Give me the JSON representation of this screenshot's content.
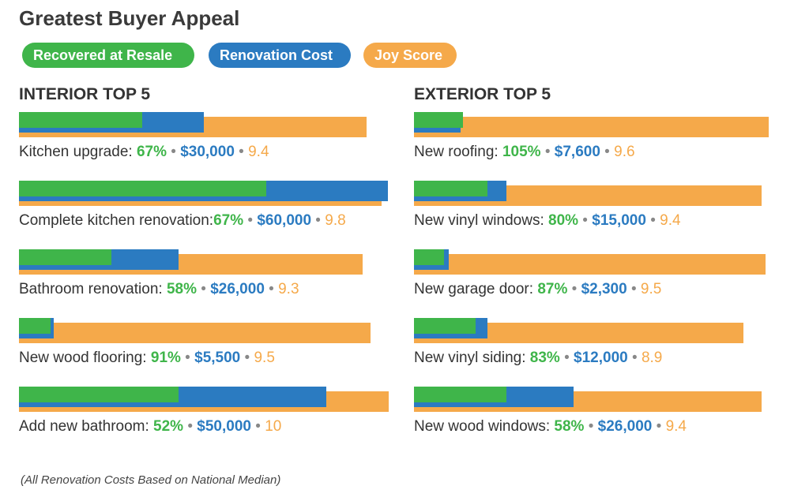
{
  "title": "Greatest Buyer Appeal",
  "legend": [
    {
      "label": "Recovered at Resale",
      "color": "#3fb54a"
    },
    {
      "label": "Renovation Cost",
      "color": "#2b7bc1"
    },
    {
      "label": "Joy Score",
      "color": "#f5a94a"
    }
  ],
  "footnote": "(All Renovation Costs Based on National Median)",
  "chart_data": [
    {
      "type": "bar",
      "title": "INTERIOR TOP 5",
      "series_names": [
        "Recovered at Resale",
        "Renovation Cost",
        "Joy Score"
      ],
      "items": [
        {
          "label": "Kitchen upgrade: ",
          "resale_pct": 67,
          "resale_text": "67%",
          "cost": 30000,
          "cost_text": "$30,000",
          "joy": 9.4,
          "joy_text": "9.4"
        },
        {
          "label": "Complete kitchen renovation:",
          "resale_pct": 67,
          "resale_text": "67%",
          "cost": 60000,
          "cost_text": "$60,000",
          "joy": 9.8,
          "joy_text": "9.8"
        },
        {
          "label": "Bathroom renovation: ",
          "resale_pct": 58,
          "resale_text": "58%",
          "cost": 26000,
          "cost_text": "$26,000",
          "joy": 9.3,
          "joy_text": "9.3"
        },
        {
          "label": "New wood flooring: ",
          "resale_pct": 91,
          "resale_text": "91%",
          "cost": 5500,
          "cost_text": "$5,500",
          "joy": 9.5,
          "joy_text": "9.5"
        },
        {
          "label": "Add new bathroom: ",
          "resale_pct": 52,
          "resale_text": "52%",
          "cost": 50000,
          "cost_text": "$50,000",
          "joy": 10,
          "joy_text": "10"
        }
      ]
    },
    {
      "type": "bar",
      "title": "EXTERIOR TOP 5",
      "series_names": [
        "Recovered at Resale",
        "Renovation Cost",
        "Joy Score"
      ],
      "items": [
        {
          "label": "New roofing: ",
          "resale_pct": 105,
          "resale_text": "105%",
          "cost": 7600,
          "cost_text": "$7,600",
          "joy": 9.6,
          "joy_text": "9.6"
        },
        {
          "label": "New vinyl windows: ",
          "resale_pct": 80,
          "resale_text": "80%",
          "cost": 15000,
          "cost_text": "$15,000",
          "joy": 9.4,
          "joy_text": "9.4"
        },
        {
          "label": "New garage door: ",
          "resale_pct": 87,
          "resale_text": "87%",
          "cost": 2300,
          "cost_text": "$2,300",
          "joy": 9.5,
          "joy_text": "9.5"
        },
        {
          "label": "New vinyl siding: ",
          "resale_pct": 83,
          "resale_text": "83%",
          "cost": 12000,
          "cost_text": "$12,000",
          "joy": 8.9,
          "joy_text": "8.9"
        },
        {
          "label": "New wood windows: ",
          "resale_pct": 58,
          "resale_text": "58%",
          "cost": 26000,
          "cost_text": "$26,000",
          "joy": 9.4,
          "joy_text": "9.4"
        }
      ]
    }
  ]
}
